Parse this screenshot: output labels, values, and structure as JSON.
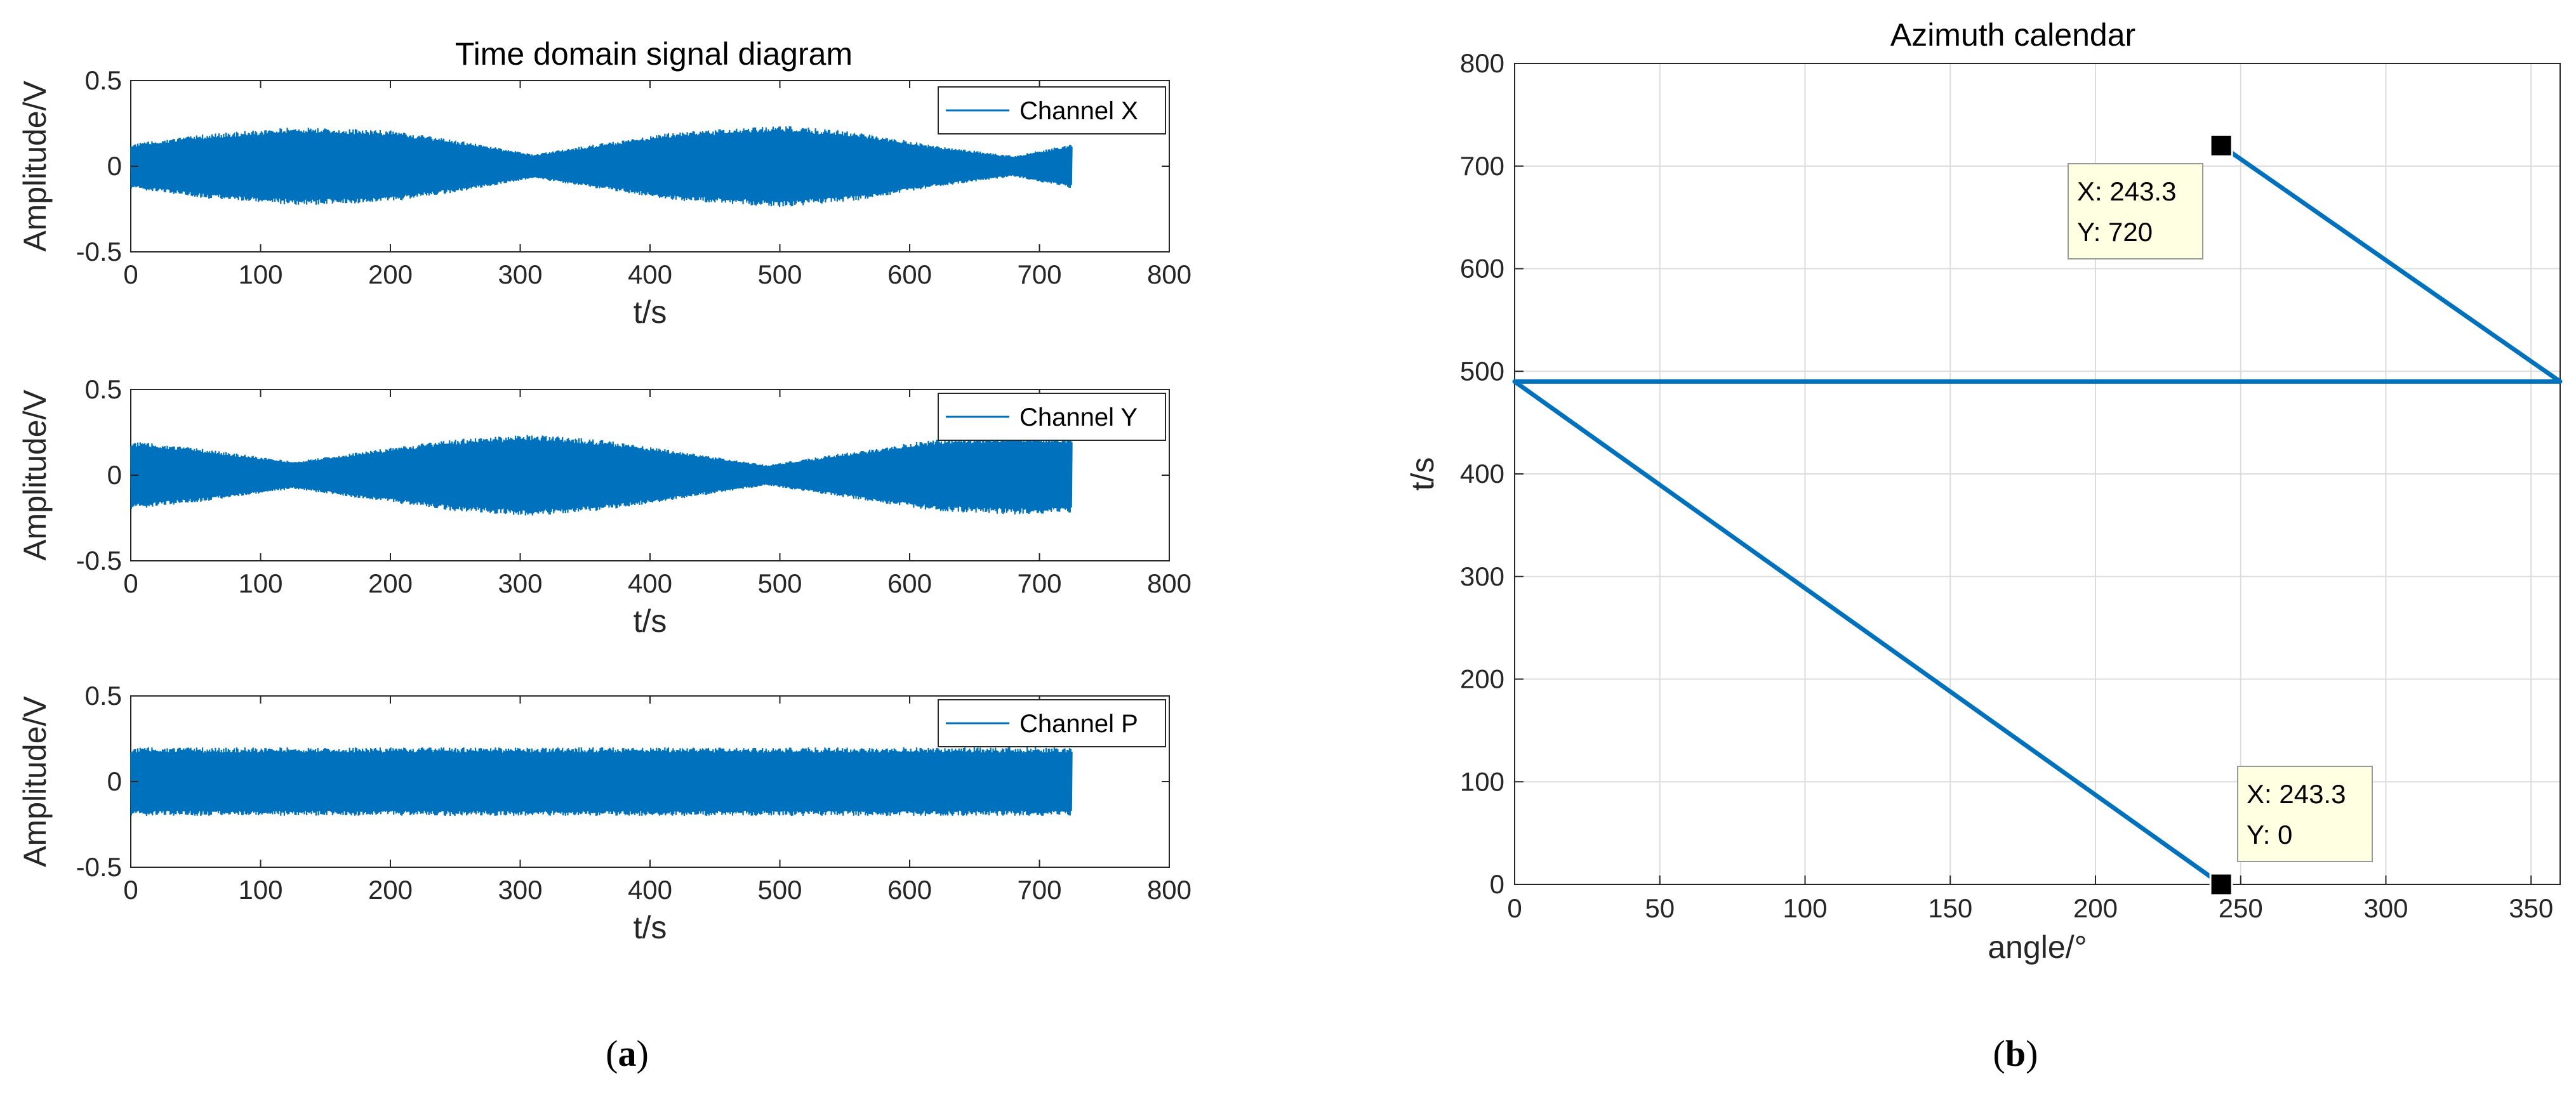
{
  "chart_data": [
    {
      "type": "line",
      "title": "Time domain signal diagram",
      "xlabel": "t/s",
      "ylabel": "Amplitude/V",
      "xlim": [
        0,
        800
      ],
      "ylim": [
        -0.5,
        0.5
      ],
      "xticks": [
        "0",
        "100",
        "200",
        "300",
        "400",
        "500",
        "600",
        "700",
        "800"
      ],
      "yticks": [
        "0.5",
        "0",
        "-0.5"
      ],
      "series": [
        {
          "name": "Channel X",
          "description": "dense oscillating signal, amplitude envelope",
          "t_end": 725,
          "envelope_t": [
            0,
            60,
            130,
            200,
            260,
            310,
            360,
            420,
            500,
            560,
            620,
            680,
            725
          ],
          "envelope_amp": [
            0.13,
            0.19,
            0.23,
            0.21,
            0.14,
            0.07,
            0.13,
            0.2,
            0.24,
            0.2,
            0.12,
            0.06,
            0.13
          ]
        }
      ]
    },
    {
      "type": "line",
      "xlabel": "t/s",
      "ylabel": "Amplitude/V",
      "xlim": [
        0,
        800
      ],
      "ylim": [
        -0.5,
        0.5
      ],
      "xticks": [
        "0",
        "100",
        "200",
        "300",
        "400",
        "500",
        "600",
        "700",
        "800"
      ],
      "yticks": [
        "0.5",
        "0",
        "-0.5"
      ],
      "series": [
        {
          "name": "Channel Y",
          "t_end": 725,
          "envelope_t": [
            0,
            60,
            125,
            190,
            250,
            310,
            370,
            430,
            490,
            550,
            620,
            680,
            725
          ],
          "envelope_amp": [
            0.2,
            0.15,
            0.08,
            0.15,
            0.21,
            0.24,
            0.2,
            0.13,
            0.06,
            0.13,
            0.21,
            0.23,
            0.22
          ]
        }
      ]
    },
    {
      "type": "line",
      "xlabel": "t/s",
      "ylabel": "Amplitude/V",
      "xlim": [
        0,
        800
      ],
      "ylim": [
        -0.5,
        0.5
      ],
      "xticks": [
        "0",
        "100",
        "200",
        "300",
        "400",
        "500",
        "600",
        "700",
        "800"
      ],
      "yticks": [
        "0.5",
        "0",
        "-0.5"
      ],
      "series": [
        {
          "name": "Channel P",
          "t_end": 725,
          "envelope_t": [
            0,
            725
          ],
          "envelope_amp": [
            0.2,
            0.2
          ]
        }
      ]
    },
    {
      "type": "line",
      "title": "Azimuth calendar",
      "xlabel": "angle/°",
      "ylabel": "t/s",
      "xlim": [
        0,
        360
      ],
      "ylim": [
        0,
        800
      ],
      "grid": true,
      "xticks": [
        "0",
        "50",
        "100",
        "150",
        "200",
        "250",
        "300",
        "350"
      ],
      "yticks": [
        "0",
        "100",
        "200",
        "300",
        "400",
        "500",
        "600",
        "700",
        "800"
      ],
      "series": [
        {
          "x": [
            243.3,
            0,
            360,
            243.3
          ],
          "y": [
            0,
            490,
            490,
            720
          ]
        }
      ],
      "datatips": [
        {
          "x_label": "X: 243.3",
          "y_label": "Y: 720",
          "x": 243.3,
          "y": 720
        },
        {
          "x_label": "X: 243.3",
          "y_label": "Y: 0",
          "x": 243.3,
          "y": 0
        }
      ]
    }
  ],
  "captions": {
    "a": {
      "open": "(",
      "letter": "a",
      "close": ")"
    },
    "b": {
      "open": "(",
      "letter": "b",
      "close": ")"
    }
  },
  "colors": {
    "line": "#0072BD",
    "axis": "#262626",
    "grid": "#DCDCDC",
    "tip_bg": "#FFFFE1"
  }
}
